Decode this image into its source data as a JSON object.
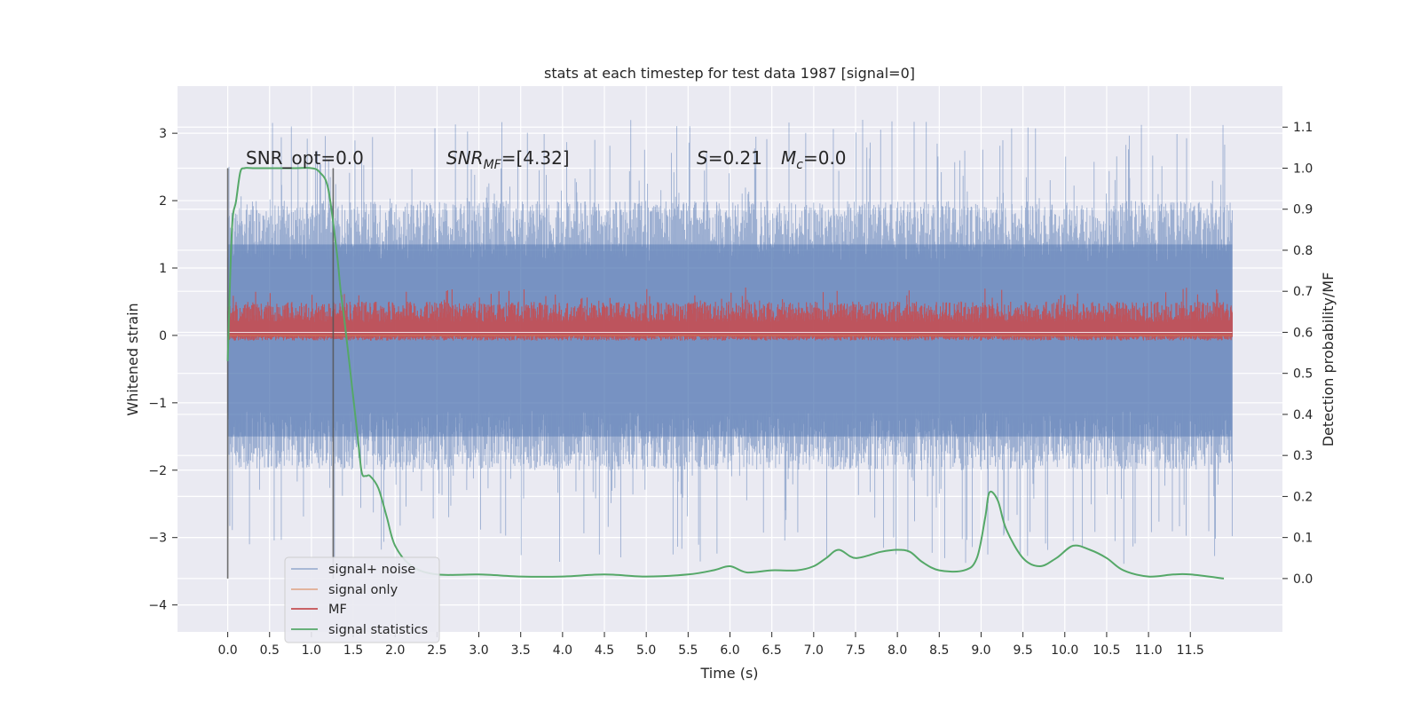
{
  "chart_data": {
    "type": "line",
    "title": "stats at each timestep for test data 1987 [signal=0]",
    "xlabel": "Time (s)",
    "ylabel": "Whitened strain",
    "y2label": "Detection probability/MF",
    "xlim": [
      -0.6,
      12.6
    ],
    "ylim": [
      -4.4,
      3.7
    ],
    "y2lim": [
      -0.13,
      1.2
    ],
    "x_ticks": [
      "0.0",
      "0.5",
      "1.0",
      "1.5",
      "2.0",
      "2.5",
      "3.0",
      "3.5",
      "4.0",
      "4.5",
      "5.0",
      "5.5",
      "6.0",
      "6.5",
      "7.0",
      "7.5",
      "8.0",
      "8.5",
      "9.0",
      "9.5",
      "10.0",
      "10.5",
      "11.0",
      "11.5"
    ],
    "y_ticks": [
      "3",
      "2",
      "1",
      "0",
      "−1",
      "−2",
      "−3",
      "−4"
    ],
    "y2_ticks": [
      "1.1",
      "1.0",
      "0.9",
      "0.8",
      "0.7",
      "0.6",
      "0.5",
      "0.4",
      "0.3",
      "0.2",
      "0.1",
      "0.0"
    ],
    "grid": true,
    "legend_placement": "lower-left",
    "legend": [
      "signal+ noise",
      "signal only",
      "MF",
      "signal statistics"
    ],
    "colors": {
      "signal_noise": "#4c72b0",
      "signal_only": "#dd8452",
      "mf": "#c44e52",
      "statistics": "#55a868",
      "background": "#eaeaf2",
      "vline": "#555555"
    },
    "annotations": {
      "snr_opt": "SNR_opt=0.0",
      "snr_mf_main": "SNR",
      "snr_mf_sub": "MF",
      "snr_mf_rest": "=[4.32]",
      "s_symbol": "S",
      "s_value": "=0.21",
      "mc_main": "M",
      "mc_sub": "c",
      "mc_value": "=0.0"
    },
    "vlines_x": [
      0.0,
      1.26
    ],
    "signal_noise": {
      "x_range": [
        0.0,
        12.0
      ],
      "typical_range": [
        -2.0,
        2.0
      ],
      "extreme_range": [
        -3.7,
        3.3
      ]
    },
    "signal_only": {
      "x_range": [
        0.0,
        12.0
      ],
      "value": 0.0
    },
    "mf": {
      "x_range": [
        0.0,
        12.0
      ],
      "typical_range": [
        0.0,
        0.7
      ],
      "axis": "right",
      "range_right_axis": [
        0.58,
        0.71
      ]
    },
    "statistics": {
      "axis": "right",
      "x": [
        0.0,
        0.05,
        0.1,
        0.15,
        0.2,
        0.3,
        0.5,
        0.8,
        1.0,
        1.1,
        1.2,
        1.3,
        1.35,
        1.4,
        1.5,
        1.55,
        1.6,
        1.65,
        1.7,
        1.8,
        1.9,
        2.0,
        2.2,
        2.5,
        3.0,
        3.5,
        4.0,
        4.5,
        5.0,
        5.5,
        5.8,
        6.0,
        6.2,
        6.5,
        6.8,
        7.0,
        7.15,
        7.3,
        7.5,
        7.8,
        8.0,
        8.15,
        8.3,
        8.5,
        8.8,
        8.95,
        9.05,
        9.1,
        9.2,
        9.3,
        9.5,
        9.7,
        9.9,
        10.1,
        10.3,
        10.5,
        10.7,
        11.0,
        11.3,
        11.5,
        11.9
      ],
      "y": [
        0.53,
        0.85,
        0.92,
        0.99,
        1.0,
        1.0,
        1.0,
        1.0,
        1.0,
        0.99,
        0.95,
        0.8,
        0.7,
        0.62,
        0.44,
        0.35,
        0.26,
        0.25,
        0.25,
        0.22,
        0.15,
        0.08,
        0.03,
        0.01,
        0.01,
        0.005,
        0.005,
        0.01,
        0.005,
        0.01,
        0.02,
        0.03,
        0.015,
        0.02,
        0.02,
        0.03,
        0.05,
        0.07,
        0.05,
        0.065,
        0.07,
        0.065,
        0.04,
        0.02,
        0.02,
        0.05,
        0.15,
        0.21,
        0.19,
        0.12,
        0.05,
        0.03,
        0.05,
        0.08,
        0.07,
        0.05,
        0.02,
        0.005,
        0.01,
        0.01,
        0.0
      ]
    }
  }
}
